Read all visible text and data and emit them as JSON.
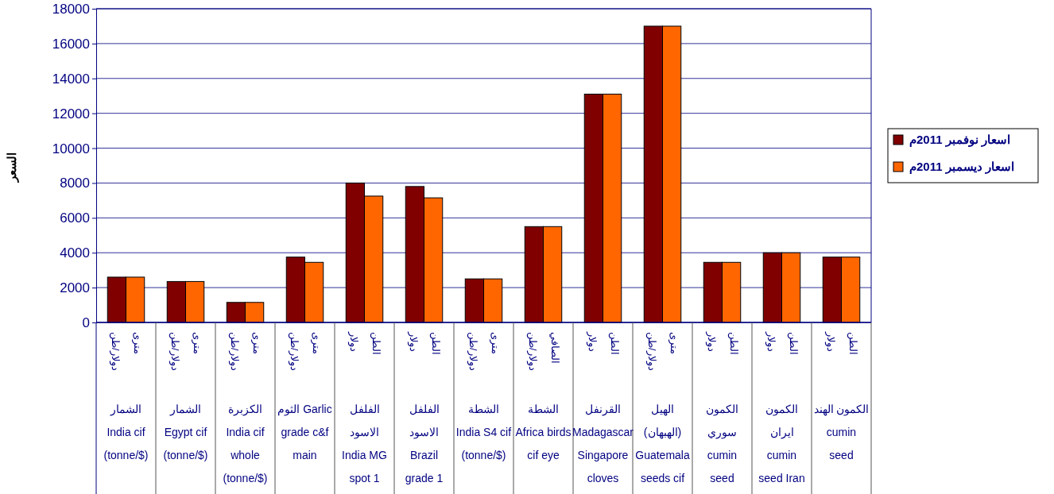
{
  "chart_data": {
    "type": "bar",
    "ylabel": "السعر",
    "categories": [
      "دولار/طن مترى\nالشمار India cif (tonne/$)",
      "دولار/طن مترى\nالشمار Egypt cif (tonne/$)",
      "دولار/طن مترى\nالكزبرة India cif whole (tonne/$)",
      "دولار/طن مترى\nالثوم Garlic grade c&f main",
      "دولار الطن\nالفلفل الاسود India MG spot 1",
      "دولار الطن\nالفلفل الاسود Brazil grade 1",
      "دولار/طن مترى\nالشطة India S4 cif (tonne/$)",
      "دولار/طن الصافي\nالشطة Africa birds cif eye",
      "دولار الطن\nالقرنفل Madagascar Singapore cloves",
      "دولار/طن مترى\nالهيل (الهبهان) Guatemala seeds cif",
      "دولار الطن\nالكمون سوري cumin seed",
      "دولار الطن\nالكمون ايران cumin seed Iran",
      "دولار الطن\nالكمون الهند cumin seed"
    ],
    "series": [
      {
        "name": "اسعار نوفمبر 2011م",
        "color": "#800000",
        "values": [
          2600,
          2350,
          1150,
          3750,
          8000,
          7800,
          2500,
          5500,
          13100,
          17000,
          3450,
          4000,
          3750
        ]
      },
      {
        "name": "اسعار ديسمبر 2011م",
        "color": "#ff6600",
        "values": [
          2600,
          2350,
          1150,
          3450,
          7250,
          7150,
          2500,
          5500,
          13100,
          17000,
          3450,
          4000,
          3750
        ]
      }
    ],
    "ylim": [
      0,
      18000
    ],
    "yticks": [
      0,
      2000,
      4000,
      6000,
      8000,
      10000,
      12000,
      14000,
      16000,
      18000
    ],
    "grid": "y",
    "legend": "right"
  }
}
